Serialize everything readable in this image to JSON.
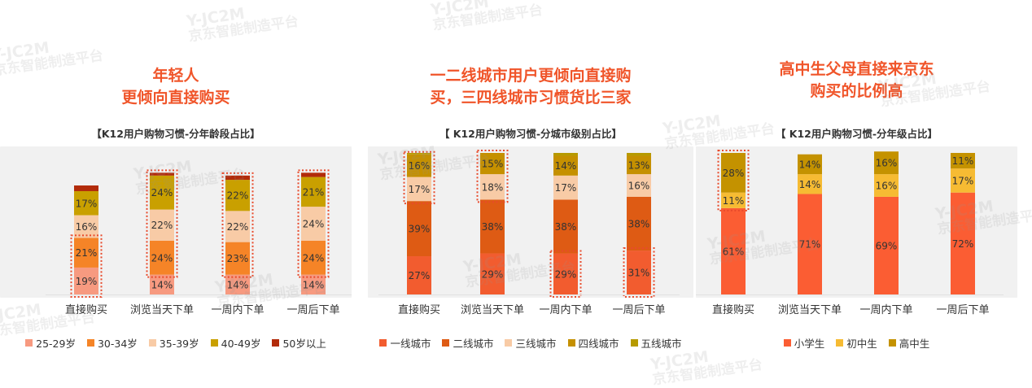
{
  "watermark": {
    "code": "Y-JC2M",
    "text": "京东智能制造平台"
  },
  "colors": {
    "title": "#f0552a"
  },
  "chart_data": [
    {
      "type": "bar",
      "stacked": true,
      "title": [
        "年轻人",
        "更倾向直接购买"
      ],
      "subtitle": "【K12用户购物习惯-分年龄段占比】",
      "categories": [
        "直接购买",
        "浏览当天下单",
        "一周内下单",
        "一周后下单"
      ],
      "series": [
        {
          "name": "25-29岁",
          "color": "#f79a80",
          "values": [
            19,
            14,
            14,
            14
          ]
        },
        {
          "name": "30-34岁",
          "color": "#f58427",
          "values": [
            21,
            24,
            23,
            24
          ]
        },
        {
          "name": "35-39岁",
          "color": "#f8cba6",
          "values": [
            16,
            22,
            22,
            24
          ]
        },
        {
          "name": "40-49岁",
          "color": "#c9a000",
          "values": [
            17,
            24,
            22,
            21
          ]
        },
        {
          "name": "50岁以上",
          "color": "#b22b0a",
          "values": [
            4,
            2,
            3,
            3
          ]
        }
      ],
      "labels_visible": [
        [
          "19%",
          "21%",
          "16%",
          "17%",
          ""
        ],
        [
          "14%",
          "24%",
          "22%",
          "24%",
          ""
        ],
        [
          "14%",
          "23%",
          "22%",
          "22%",
          ""
        ],
        [
          "14%",
          "24%",
          "24%",
          "21%",
          ""
        ]
      ],
      "highlights": [
        {
          "category": 0,
          "series": [
            0,
            1
          ]
        },
        {
          "category": 1,
          "series": [
            1,
            2,
            3,
            4
          ]
        },
        {
          "category": 2,
          "series": [
            1,
            2,
            3,
            4
          ]
        },
        {
          "category": 3,
          "series": [
            1,
            2,
            3,
            4
          ]
        }
      ],
      "legend": "bottom"
    },
    {
      "type": "bar",
      "stacked": true,
      "title": [
        "一二线城市用户更倾向直接购",
        "买，三四线城市习惯货比三家"
      ],
      "subtitle": "【 K12用户购物习惯-分城市级别占比】",
      "categories": [
        "直接购买",
        "浏览当天下单",
        "一周内下单",
        "一周后下单"
      ],
      "series": [
        {
          "name": "一线城市",
          "color": "#f25c2f",
          "values": [
            27,
            29,
            29,
            31
          ]
        },
        {
          "name": "二线城市",
          "color": "#de5b14",
          "values": [
            39,
            38,
            38,
            38
          ]
        },
        {
          "name": "三线城市",
          "color": "#f8cba6",
          "values": [
            17,
            18,
            17,
            16
          ]
        },
        {
          "name": "四线城市",
          "color": "#c59000",
          "values": [
            16,
            15,
            14,
            13
          ]
        },
        {
          "name": "五线城市",
          "color": "#b69a00",
          "values": [
            1,
            0,
            2,
            2
          ]
        }
      ],
      "labels_visible": [
        [
          "27%",
          "39%",
          "17%",
          "16%",
          ""
        ],
        [
          "29%",
          "38%",
          "18%",
          "15%",
          ""
        ],
        [
          "29%",
          "38%",
          "17%",
          "14%",
          ""
        ],
        [
          "31%",
          "38%",
          "16%",
          "13%",
          ""
        ]
      ],
      "highlights": [
        {
          "category": 0,
          "series": [
            2,
            3
          ]
        },
        {
          "category": 1,
          "series": [
            2,
            3
          ]
        },
        {
          "category": 2,
          "series": [
            0
          ]
        },
        {
          "category": 3,
          "series": [
            0
          ]
        }
      ],
      "legend": "bottom"
    },
    {
      "type": "bar",
      "stacked": true,
      "title": [
        "高中生父母直接来京东",
        "购买的比例高"
      ],
      "subtitle": "【 K12用户购物习惯-分年级占比】",
      "categories": [
        "直接购买",
        "浏览当天下单",
        "一周内下单",
        "一周后下单"
      ],
      "series": [
        {
          "name": "小学生",
          "color": "#fb5d33",
          "values": [
            61,
            71,
            69,
            72
          ]
        },
        {
          "name": "初中生",
          "color": "#f6bb33",
          "values": [
            11,
            14,
            16,
            17
          ]
        },
        {
          "name": "高中生",
          "color": "#c49200",
          "values": [
            28,
            14,
            16,
            11
          ]
        }
      ],
      "labels_visible": [
        [
          "61%",
          "11%",
          "28%"
        ],
        [
          "71%",
          "14%",
          "14%"
        ],
        [
          "69%",
          "16%",
          "16%"
        ],
        [
          "72%",
          "17%",
          "11%"
        ]
      ],
      "highlights": [
        {
          "category": 0,
          "series": [
            1,
            2
          ]
        }
      ],
      "legend": "bottom"
    }
  ]
}
